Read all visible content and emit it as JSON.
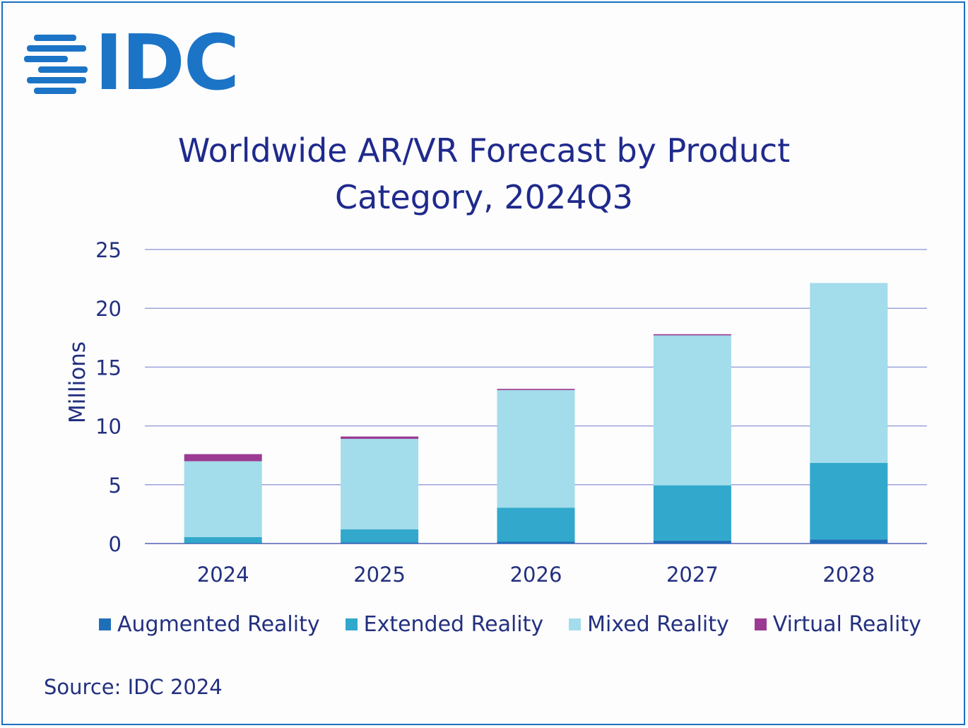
{
  "logo": {
    "text": "IDC",
    "color": "#1c74c6"
  },
  "chart_data": {
    "type": "bar",
    "stacked": true,
    "title": "Worldwide AR/VR Forecast by Product Category, 2024Q3",
    "title_lines": [
      "Worldwide AR/VR Forecast by Product",
      "Category, 2024Q3"
    ],
    "ylabel": "Millions",
    "xlabel": "",
    "ylim": [
      0,
      25
    ],
    "yticks": [
      0,
      5,
      10,
      15,
      20,
      25
    ],
    "categories": [
      "2024",
      "2025",
      "2026",
      "2027",
      "2028"
    ],
    "series": [
      {
        "name": "Augmented Reality",
        "color": "#1f6fb8",
        "values": [
          0.05,
          0.1,
          0.15,
          0.25,
          0.35
        ]
      },
      {
        "name": "Extended Reality",
        "color": "#31a8cc",
        "values": [
          0.5,
          1.1,
          2.9,
          4.7,
          6.5
        ]
      },
      {
        "name": "Mixed Reality",
        "color": "#a3dcea",
        "values": [
          6.45,
          7.7,
          10.0,
          12.75,
          15.3
        ]
      },
      {
        "name": "Virtual Reality",
        "color": "#9b3a93",
        "values": [
          0.6,
          0.2,
          0.1,
          0.1,
          0.0
        ]
      }
    ],
    "grid": true,
    "legend_position": "bottom"
  },
  "source": "Source: IDC 2024"
}
